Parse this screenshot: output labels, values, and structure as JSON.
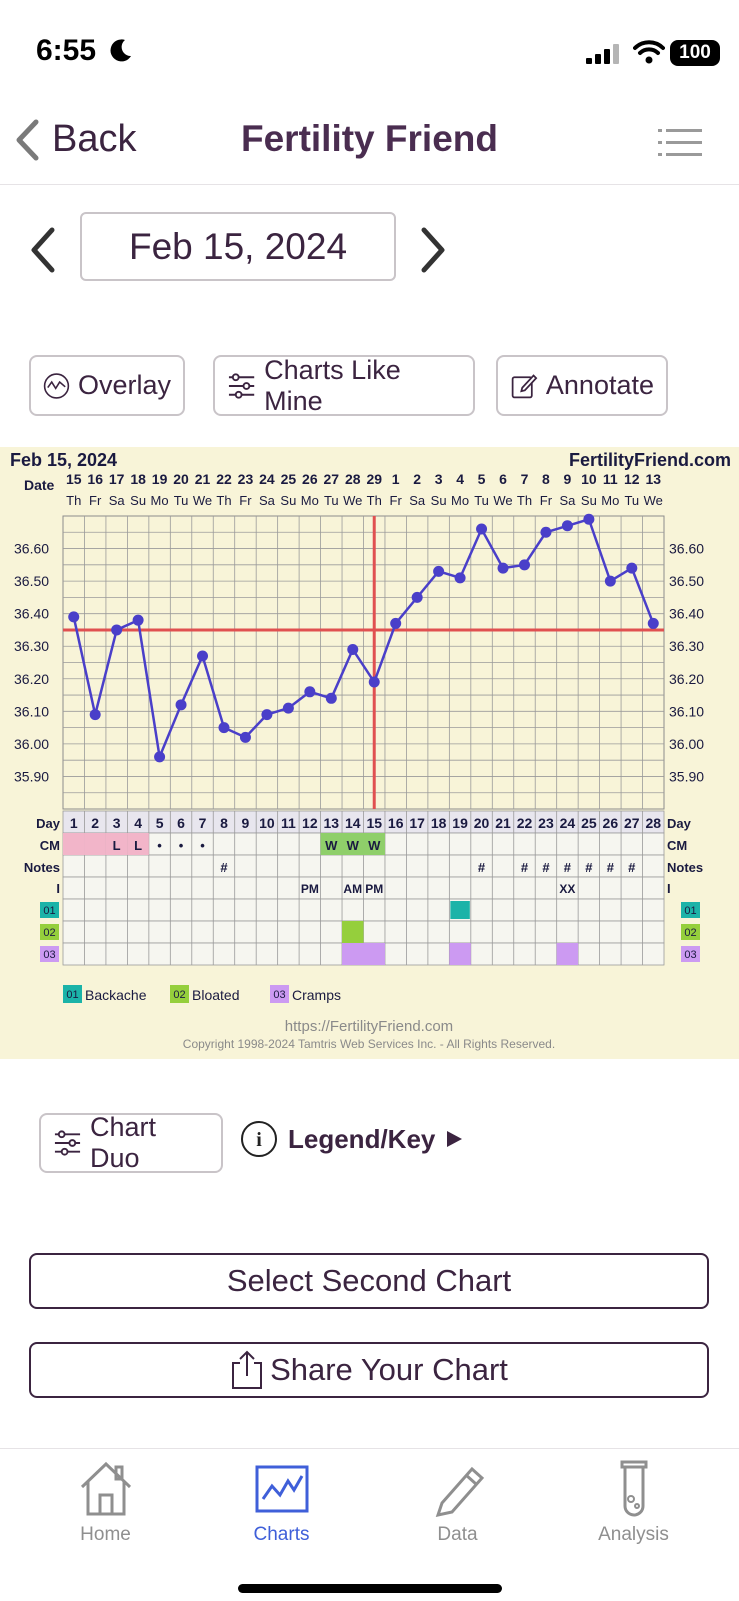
{
  "status_bar": {
    "time": "6:55",
    "battery": "100"
  },
  "nav": {
    "back_label": "Back",
    "title": "Fertility Friend"
  },
  "date_selector": {
    "value": "Feb 15, 2024"
  },
  "actions": {
    "overlay": "Overlay",
    "charts_like_mine": "Charts Like Mine",
    "annotate": "Annotate"
  },
  "chart_header": {
    "date": "Feb 15, 2024",
    "site": "FertilityFriend.com"
  },
  "chart_data": {
    "type": "line",
    "x": [
      1,
      2,
      3,
      4,
      5,
      6,
      7,
      8,
      9,
      10,
      11,
      12,
      13,
      14,
      15,
      16,
      17,
      18,
      19,
      20,
      21,
      22,
      23,
      24,
      25,
      26,
      27,
      28
    ],
    "dates": [
      "15",
      "16",
      "17",
      "18",
      "19",
      "20",
      "21",
      "22",
      "23",
      "24",
      "25",
      "26",
      "27",
      "28",
      "29",
      "1",
      "2",
      "3",
      "4",
      "5",
      "6",
      "7",
      "8",
      "9",
      "10",
      "11",
      "12",
      "13"
    ],
    "weekdays": [
      "Th",
      "Fr",
      "Sa",
      "Su",
      "Mo",
      "Tu",
      "We",
      "Th",
      "Fr",
      "Sa",
      "Su",
      "Mo",
      "Tu",
      "We",
      "Th",
      "Fr",
      "Sa",
      "Su",
      "Mo",
      "Tu",
      "We",
      "Th",
      "Fr",
      "Sa",
      "Su",
      "Mo",
      "Tu",
      "We"
    ],
    "series": [
      {
        "values": [
          36.39,
          36.09,
          36.35,
          36.38,
          35.96,
          36.12,
          36.27,
          36.05,
          36.02,
          36.09,
          36.11,
          36.16,
          36.14,
          36.29,
          36.19,
          36.37,
          36.45,
          36.53,
          36.51,
          36.66,
          36.54,
          36.55,
          36.65,
          36.67,
          36.69,
          36.5,
          36.54,
          36.37
        ]
      }
    ],
    "y_ticks": [
      "36.60",
      "36.50",
      "36.40",
      "36.30",
      "36.20",
      "36.10",
      "36.00",
      "35.90"
    ],
    "ylim": [
      35.8,
      36.7
    ],
    "coverline": 36.35,
    "ovulation_day": 14.5,
    "colors": {
      "line": "#4a3fc9",
      "coverline": "#e05050",
      "ovulation": "#e05050",
      "background": "#f8f4d8"
    },
    "row_labels": {
      "day": "Day",
      "date": "Date",
      "cm": "CM",
      "notes": "Notes",
      "i": "I",
      "s1": "01",
      "s2": "02",
      "s3": "03"
    },
    "cm": [
      "",
      "",
      "L",
      "L",
      "•",
      "•",
      "•",
      "",
      "",
      "",
      "",
      "",
      "W",
      "W",
      "W",
      "",
      "",
      "",
      "",
      "",
      "",
      "",
      "",
      "",
      "",
      "",
      "",
      ""
    ],
    "cm_colors": [
      "pink",
      "pink",
      "pink",
      "pink",
      "",
      "",
      "",
      "",
      "",
      "",
      "",
      "",
      "green",
      "green",
      "green",
      "",
      "",
      "",
      "",
      "",
      "",
      "",
      "",
      "",
      "",
      "",
      "",
      ""
    ],
    "notes": [
      "",
      "",
      "",
      "",
      "",
      "",
      "",
      "#",
      "",
      "",
      "",
      "",
      "",
      "",
      "",
      "",
      "",
      "",
      "",
      "#",
      "",
      "#",
      "#",
      "#",
      "#",
      "#",
      "#",
      ""
    ],
    "intercourse": [
      "",
      "",
      "",
      "",
      "",
      "",
      "",
      "",
      "",
      "",
      "",
      "PM",
      "",
      "AM",
      "PM",
      "",
      "",
      "",
      "",
      "",
      "",
      "",
      "",
      "XX",
      "",
      "",
      "",
      ""
    ],
    "symptom_backache_days": [
      19
    ],
    "symptom_bloated_days": [
      14
    ],
    "symptom_cramps_days": [
      14,
      15,
      19,
      24
    ],
    "legend": [
      {
        "code": "01",
        "label": "Backache",
        "color": "#1bb3a8"
      },
      {
        "code": "02",
        "label": "Bloated",
        "color": "#95cf3c"
      },
      {
        "code": "03",
        "label": "Cramps",
        "color": "#cc9af2"
      }
    ],
    "footer_url": "https://FertilityFriend.com",
    "copyright": "Copyright 1998-2024 Tamtris Web Services Inc. - All Rights Reserved."
  },
  "bottom": {
    "chart_duo": "Chart Duo",
    "legend_key": "Legend/Key",
    "select_second": "Select Second Chart",
    "share": "Share Your Chart"
  },
  "tabs": [
    {
      "label": "Home",
      "icon": "home-icon"
    },
    {
      "label": "Charts",
      "icon": "chart-icon"
    },
    {
      "label": "Data",
      "icon": "pencil-icon"
    },
    {
      "label": "Analysis",
      "icon": "test-tube-icon"
    }
  ],
  "active_tab": "Charts"
}
